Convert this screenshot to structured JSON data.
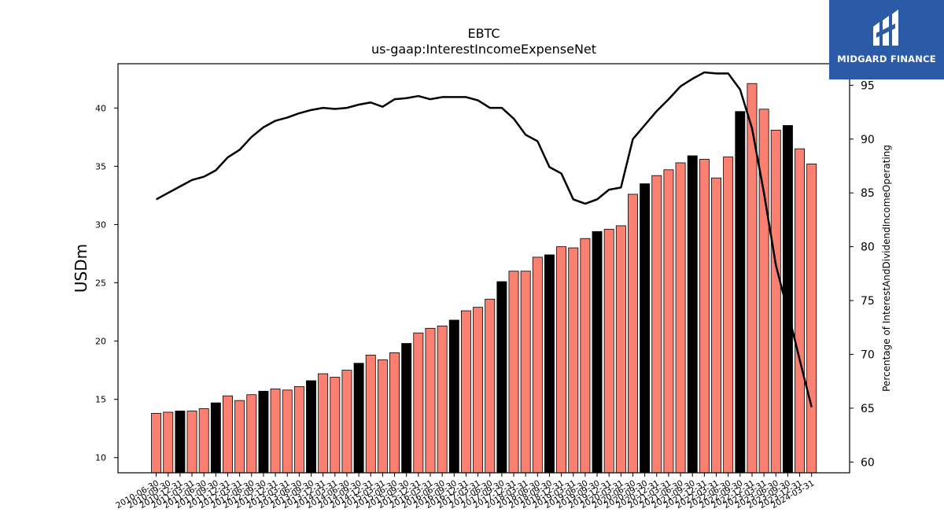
{
  "brand": {
    "name": "MIDGARD FINANCE",
    "bg": "#2b5aa6",
    "icon": "midgard-logo-icon"
  },
  "chart_data": {
    "type": "bar",
    "title": "EBTC",
    "subtitle": "us-gaap:InterestIncomeExpenseNet",
    "ylabel": "USDm",
    "y2label": "Percentage of InterestAndDividendIncomeOperating",
    "ylim": [
      8.7,
      43.8
    ],
    "y2lim": [
      59.0,
      97.0
    ],
    "yticks": [
      10,
      15,
      20,
      25,
      30,
      35,
      40
    ],
    "y2ticks": [
      60,
      65,
      70,
      75,
      80,
      85,
      90,
      95
    ],
    "colors": {
      "bar": "#fa8072",
      "bar_highlight": "#000000",
      "line": "#000000"
    },
    "categories": [
      "2010-06-30",
      "2010-09-30",
      "2010-12-31",
      "2011-03-31",
      "2011-06-30",
      "2011-09-30",
      "2011-12-31",
      "2012-03-31",
      "2012-06-30",
      "2012-09-30",
      "2012-12-31",
      "2013-03-31",
      "2013-06-30",
      "2013-09-30",
      "2013-12-31",
      "2014-03-31",
      "2014-06-30",
      "2014-09-30",
      "2014-12-31",
      "2015-03-31",
      "2015-06-30",
      "2015-09-30",
      "2015-12-31",
      "2016-03-31",
      "2016-06-30",
      "2016-09-30",
      "2016-12-31",
      "2017-03-31",
      "2017-06-30",
      "2017-09-30",
      "2017-12-31",
      "2018-03-31",
      "2018-06-30",
      "2018-09-30",
      "2018-12-31",
      "2019-03-31",
      "2019-06-30",
      "2019-09-30",
      "2019-12-31",
      "2020-03-31",
      "2020-06-30",
      "2020-09-30",
      "2020-12-31",
      "2021-03-31",
      "2021-06-30",
      "2021-09-30",
      "2021-12-31",
      "2022-03-31",
      "2022-06-30",
      "2022-09-30",
      "2022-12-31",
      "2023-03-31",
      "2023-06-30",
      "2023-09-30",
      "2023-12-31",
      "2024-03-31"
    ],
    "xticklabels": [
      "2010-06-30",
      "2010-09-30",
      "2010-12-31",
      "2011-03-31",
      "2011-06-30",
      "2011-09-30",
      "2011-12-31",
      "2012-03-31",
      "2012-06-30",
      "2012-09-30",
      "2012-12-31",
      "2013-03-31",
      "2013-06-30",
      "2013-09-30",
      "2013-12-31",
      "2014-03-31",
      "2014-06-30",
      "2014-09-30",
      "2014-12-31",
      "2015-03-31",
      "2015-06-30",
      "2015-09-30",
      "2015-12-31",
      "2016-03-31",
      "2016-06-30",
      "2016-09-30",
      "2016-12-31",
      "2017-03-31",
      "2017-06-30",
      "2017-09-30",
      "2017-12-31",
      "2018-03-31",
      "2018-06-30",
      "2018-09-30",
      "2018-12-31",
      "2019-03-31",
      "2019-06-30",
      "2019-09-30",
      "2019-12-31",
      "2020-03-31",
      "2020-06-30",
      "2020-09-30",
      "2020-12-31",
      "2021-03-31",
      "2021-06-30",
      "2021-09-30",
      "2021-12-31",
      "2022-03-31",
      "2022-06-30",
      "2022-09-30",
      "2022-12-31",
      "2023-03-31",
      "2023-06-30",
      "2023-09-30",
      "2023-12-31",
      "2024-03-31"
    ],
    "values": [
      13.8,
      13.9,
      14.0,
      14.0,
      14.2,
      14.7,
      15.3,
      14.9,
      15.4,
      15.7,
      15.9,
      15.8,
      16.1,
      16.6,
      17.2,
      16.9,
      17.5,
      18.1,
      18.8,
      18.4,
      19.0,
      19.8,
      20.7,
      21.1,
      21.3,
      21.8,
      22.6,
      22.9,
      23.6,
      25.1,
      26.0,
      26.0,
      27.2,
      27.4,
      28.1,
      28.0,
      28.8,
      29.4,
      29.6,
      29.9,
      32.6,
      33.5,
      34.2,
      34.7,
      35.3,
      35.9,
      35.6,
      34.0,
      35.8,
      39.7,
      42.1,
      39.9,
      38.1,
      38.5,
      36.5,
      35.2
    ],
    "highlight": [
      false,
      false,
      true,
      false,
      false,
      true,
      false,
      false,
      false,
      true,
      false,
      false,
      false,
      true,
      false,
      false,
      false,
      true,
      false,
      false,
      false,
      true,
      false,
      false,
      false,
      true,
      false,
      false,
      false,
      true,
      false,
      false,
      false,
      true,
      false,
      false,
      false,
      true,
      false,
      false,
      false,
      true,
      false,
      false,
      false,
      true,
      false,
      false,
      false,
      true,
      false,
      false,
      false,
      true,
      false,
      false
    ],
    "line_values": [
      84.4,
      85.0,
      85.6,
      86.2,
      86.5,
      87.1,
      88.3,
      89.0,
      90.2,
      91.1,
      91.7,
      92.0,
      92.4,
      92.7,
      92.9,
      92.8,
      92.9,
      93.2,
      93.4,
      93.0,
      93.7,
      93.8,
      94.0,
      93.7,
      93.9,
      93.9,
      93.9,
      93.6,
      92.9,
      92.9,
      91.9,
      90.4,
      89.8,
      87.4,
      86.8,
      84.4,
      84.0,
      84.4,
      85.3,
      85.5,
      90.0,
      91.3,
      92.6,
      93.7,
      94.9,
      95.6,
      96.2,
      96.1,
      96.1,
      94.6,
      91.0,
      85.0,
      78.3,
      74.0,
      69.5,
      65.1
    ]
  }
}
